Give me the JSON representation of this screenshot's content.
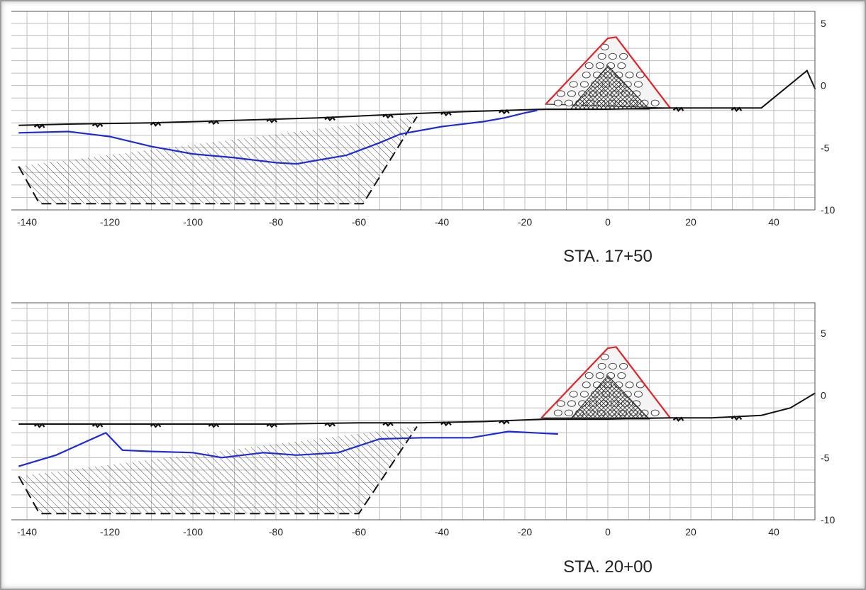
{
  "colors": {
    "ground": "#111111",
    "water": "#1f2bd6",
    "armor": "#e0242a",
    "grid": "#bdbdbd",
    "frame": "#9c9c9c"
  },
  "chart_data": [
    {
      "type": "line",
      "title": "STA. 17+50",
      "xlim": [
        -142,
        50
      ],
      "ylim": [
        -10,
        7
      ],
      "xticks": [
        -140,
        -120,
        -100,
        -80,
        -60,
        -40,
        -20,
        0,
        20,
        40
      ],
      "yticks": [
        5,
        0,
        -5,
        -10
      ],
      "grid": true,
      "series": [
        {
          "key": "existing_ground",
          "x": [
            -142,
            -130,
            -110,
            -90,
            -70,
            -50,
            -35,
            -25,
            -15,
            0,
            15,
            25,
            37,
            48,
            50
          ],
          "y": [
            -3.2,
            -3.1,
            -3.0,
            -2.8,
            -2.6,
            -2.3,
            -2.1,
            -2.0,
            -1.9,
            -1.9,
            -1.8,
            -1.8,
            -1.8,
            1.2,
            -0.3
          ]
        },
        {
          "key": "water_line",
          "x": [
            -142,
            -130,
            -120,
            -110,
            -100,
            -90,
            -80,
            -75,
            -70,
            -63,
            -55,
            -50,
            -40,
            -30,
            -25,
            -20,
            -17
          ],
          "y": [
            -3.8,
            -3.7,
            -4.1,
            -4.9,
            -5.5,
            -5.8,
            -6.2,
            -6.3,
            -6.0,
            -5.6,
            -4.6,
            -3.9,
            -3.3,
            -2.9,
            -2.6,
            -2.2,
            -2.0
          ]
        },
        {
          "key": "dredge_template",
          "x": [
            -142,
            -137,
            -59,
            -46
          ],
          "y": [
            -6.5,
            -9.5,
            -9.5,
            -2.5
          ]
        },
        {
          "key": "armor_stone",
          "x": [
            -15,
            0,
            2,
            15
          ],
          "y": [
            -1.5,
            3.8,
            3.9,
            -1.8
          ]
        },
        {
          "key": "core_stone",
          "x": [
            -9,
            0,
            10
          ],
          "y": [
            -1.9,
            1.6,
            -1.9
          ]
        }
      ]
    },
    {
      "type": "line",
      "title": "STA. 20+00",
      "xlim": [
        -142,
        50
      ],
      "ylim": [
        -10,
        7
      ],
      "xticks": [
        -140,
        -120,
        -100,
        -80,
        -60,
        -40,
        -20,
        0,
        20,
        40
      ],
      "yticks": [
        5,
        0,
        -5,
        -10
      ],
      "grid": true,
      "series": [
        {
          "key": "existing_ground",
          "x": [
            -142,
            -120,
            -100,
            -80,
            -60,
            -45,
            -30,
            -15,
            0,
            15,
            25,
            37,
            44,
            50
          ],
          "y": [
            -2.3,
            -2.3,
            -2.3,
            -2.3,
            -2.2,
            -2.2,
            -2.1,
            -1.9,
            -1.9,
            -1.8,
            -1.8,
            -1.6,
            -1.0,
            0.2
          ]
        },
        {
          "key": "water_line",
          "x": [
            -142,
            -133,
            -125,
            -121,
            -117,
            -110,
            -100,
            -93,
            -83,
            -75,
            -65,
            -55,
            -45,
            -33,
            -24,
            -12
          ],
          "y": [
            -5.7,
            -4.8,
            -3.6,
            -3.0,
            -4.4,
            -4.5,
            -4.6,
            -5.0,
            -4.6,
            -4.8,
            -4.6,
            -3.5,
            -3.4,
            -3.4,
            -2.9,
            -3.1
          ]
        },
        {
          "key": "dredge_template",
          "x": [
            -142,
            -137,
            -60,
            -46
          ],
          "y": [
            -6.5,
            -9.5,
            -9.5,
            -2.5
          ]
        },
        {
          "key": "armor_stone",
          "x": [
            -16,
            0,
            2,
            15
          ],
          "y": [
            -1.8,
            3.8,
            3.9,
            -1.8
          ]
        },
        {
          "key": "core_stone",
          "x": [
            -9,
            0,
            10
          ],
          "y": [
            -1.9,
            1.6,
            -1.9
          ]
        }
      ]
    }
  ]
}
